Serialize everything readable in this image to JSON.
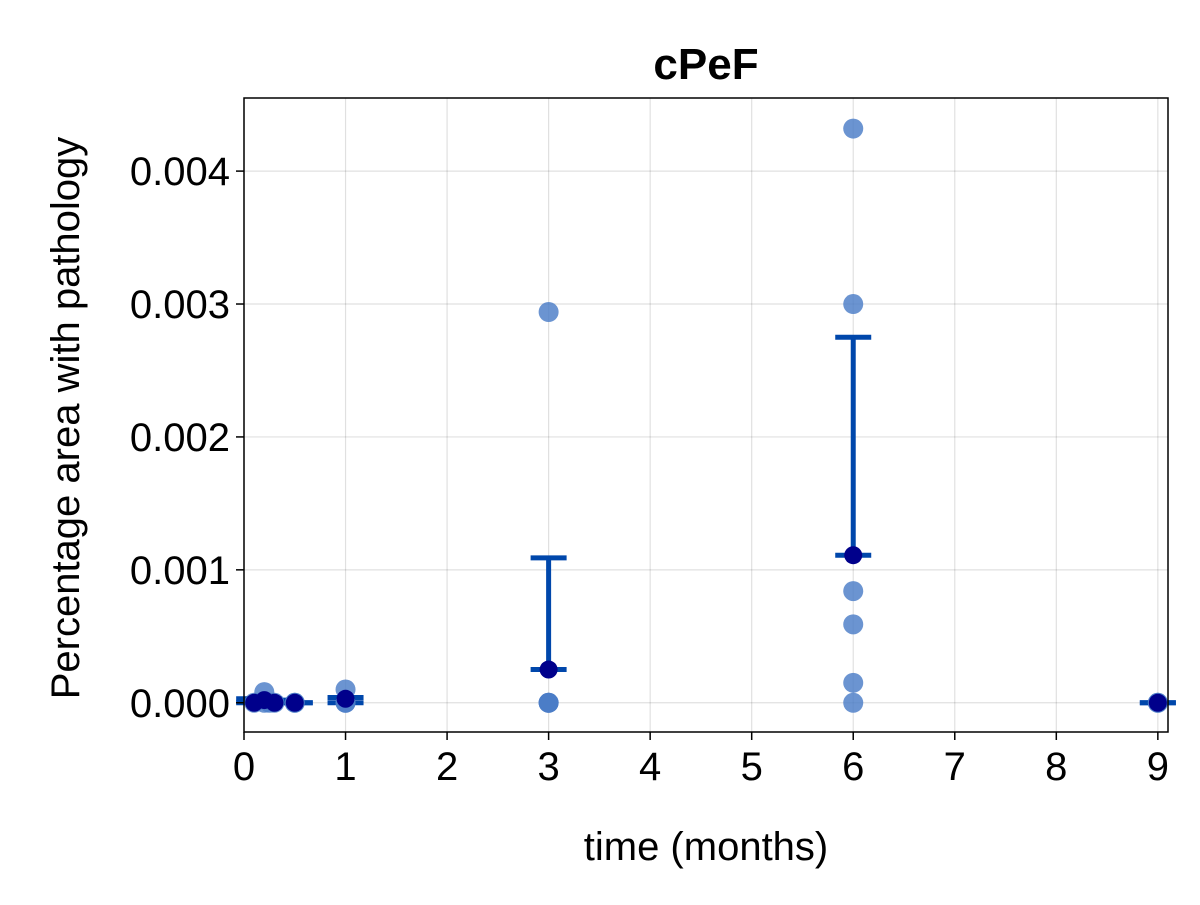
{
  "chart_data": {
    "type": "scatter",
    "title": "cPeF",
    "xlabel": "time (months)",
    "ylabel": "Percentage area with pathology",
    "xlim": [
      0,
      9.1
    ],
    "ylim": [
      -0.00022,
      0.00455
    ],
    "xticks": [
      0,
      1,
      2,
      3,
      4,
      5,
      6,
      7,
      8,
      9
    ],
    "xtick_labels": [
      "0",
      "1",
      "2",
      "3",
      "4",
      "5",
      "6",
      "7",
      "8",
      "9"
    ],
    "yticks": [
      0.0,
      0.001,
      0.002,
      0.003,
      0.004
    ],
    "ytick_labels": [
      "0.000",
      "0.001",
      "0.002",
      "0.003",
      "0.004"
    ],
    "grid": true,
    "legend": "none",
    "colors": {
      "points": "#4a7cc7",
      "mean_points": "#00008b",
      "error_bars": "#0047ab"
    },
    "series": [
      {
        "role": "individual samples",
        "points": [
          {
            "x": 0.1,
            "y": 0.0
          },
          {
            "x": 0.2,
            "y": 8e-05
          },
          {
            "x": 0.2,
            "y": 0.0
          },
          {
            "x": 0.25,
            "y": 0.0
          },
          {
            "x": 0.3,
            "y": 0.0
          },
          {
            "x": 0.5,
            "y": 0.0
          },
          {
            "x": 0.5,
            "y": 0.0
          },
          {
            "x": 1.0,
            "y": 0.0001
          },
          {
            "x": 1.0,
            "y": 0.0
          },
          {
            "x": 1.0,
            "y": 0.0
          },
          {
            "x": 3.0,
            "y": 0.00294
          },
          {
            "x": 3.0,
            "y": 0.0
          },
          {
            "x": 3.0,
            "y": 0.0
          },
          {
            "x": 3.0,
            "y": 0.0
          },
          {
            "x": 6.0,
            "y": 0.00432
          },
          {
            "x": 6.0,
            "y": 0.003
          },
          {
            "x": 6.0,
            "y": 0.00084
          },
          {
            "x": 6.0,
            "y": 0.00059
          },
          {
            "x": 6.0,
            "y": 0.00015
          },
          {
            "x": 6.0,
            "y": 0.0
          },
          {
            "x": 9.0,
            "y": 0.0
          },
          {
            "x": 9.0,
            "y": 0.0
          }
        ]
      },
      {
        "role": "mean with error bars",
        "points": [
          {
            "x": 0.1,
            "mean": 0.0,
            "low": 0.0,
            "high": 3e-05
          },
          {
            "x": 0.2,
            "mean": 2e-05,
            "low": 0.0,
            "high": 3e-05
          },
          {
            "x": 0.3,
            "mean": 0.0,
            "low": 0.0,
            "high": 2e-05
          },
          {
            "x": 0.5,
            "mean": 0.0,
            "low": 0.0,
            "high": 0.0
          },
          {
            "x": 1.0,
            "mean": 3e-05,
            "low": 0.0,
            "high": 4e-05
          },
          {
            "x": 3.0,
            "mean": 0.00025,
            "low": 0.00025,
            "high": 0.00109
          },
          {
            "x": 6.0,
            "mean": 0.00111,
            "low": 0.00111,
            "high": 0.00275
          },
          {
            "x": 9.0,
            "mean": 0.0,
            "low": 0.0,
            "high": 0.0
          }
        ]
      }
    ]
  }
}
